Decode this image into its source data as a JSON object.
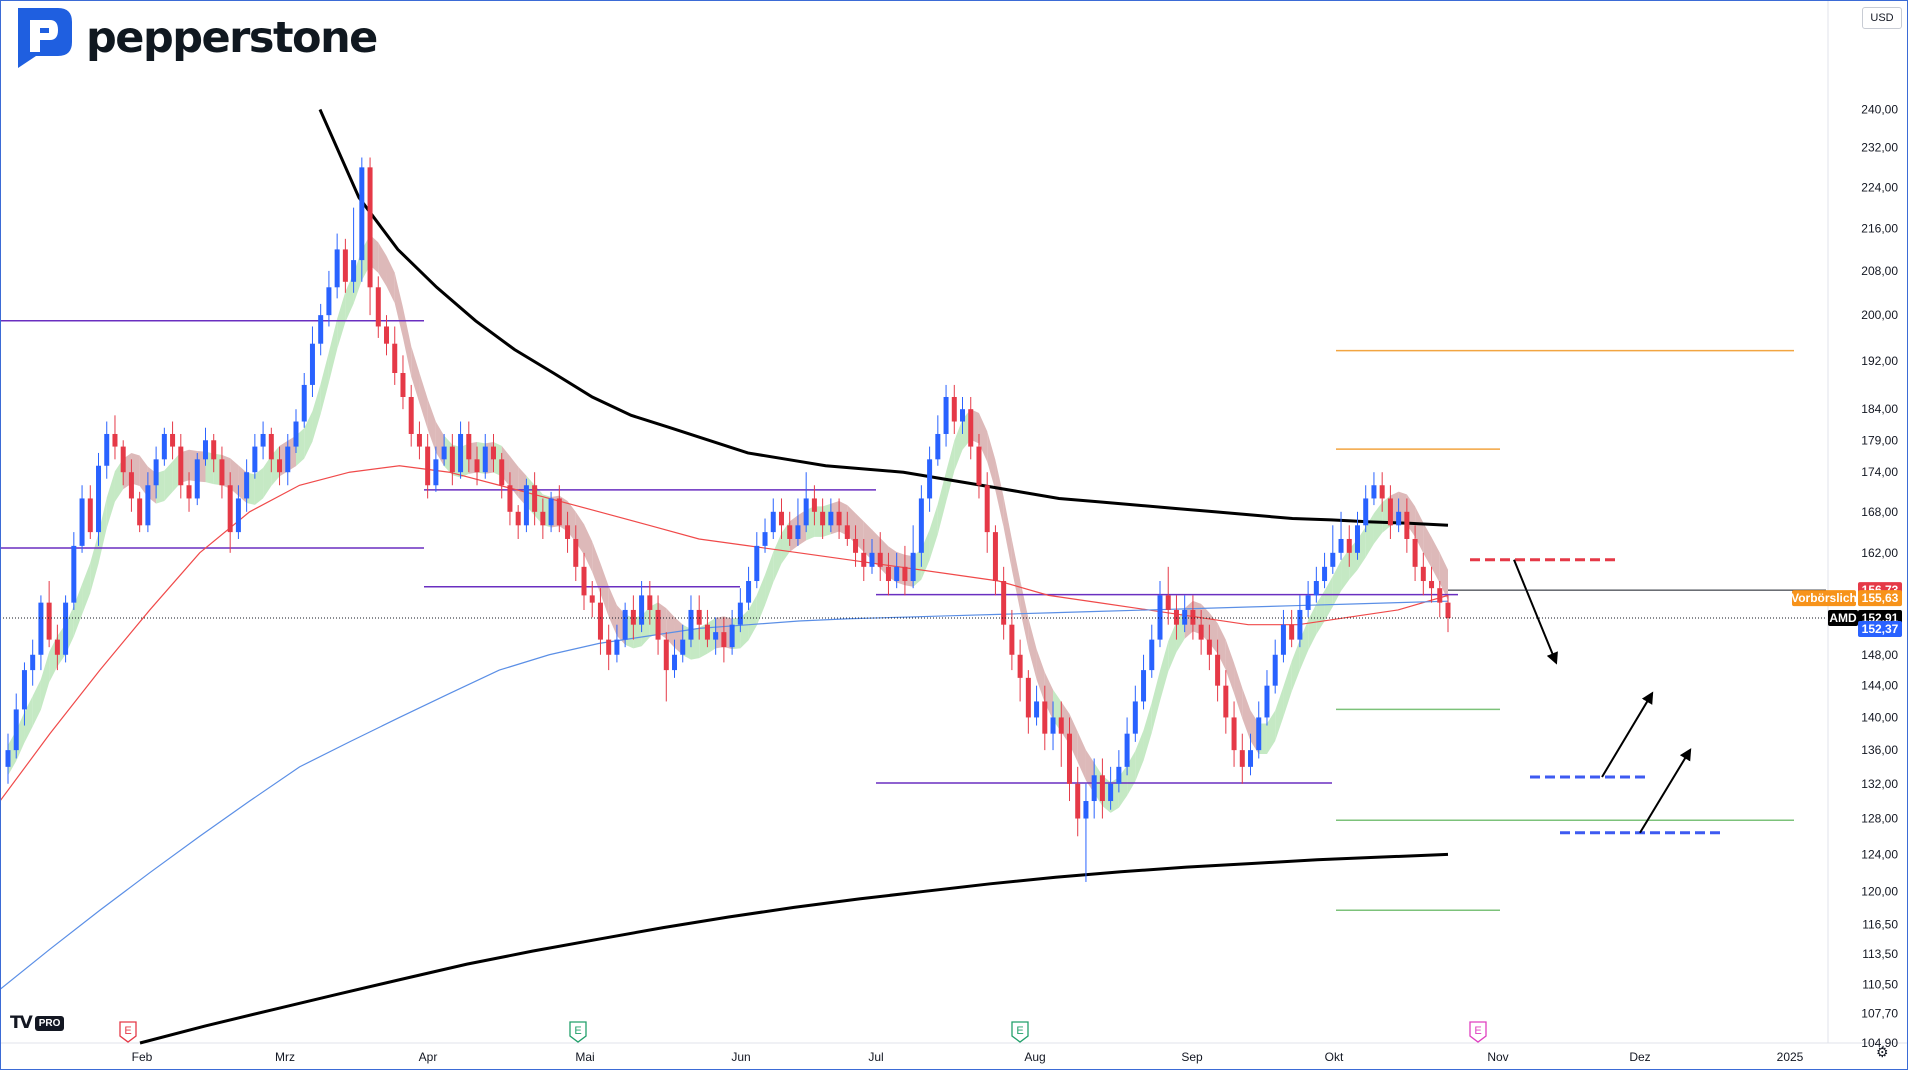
{
  "brand": {
    "name": "pepperstone"
  },
  "toolbar": {
    "currency": "USD",
    "platform_mark": "TV",
    "platform_tier": "PRO"
  },
  "colors": {
    "up": "#2962ff",
    "down": "#e53947",
    "ma_black": "#000000",
    "ma_red": "#f04a4a",
    "ma_blue": "#5b8fe6",
    "ma_gray": "#555555",
    "cloud_bull": "#b7e4b5",
    "cloud_bear": "#d4a8a8",
    "level_purple": "#6a2fc0",
    "fib_orange": "#f2a541",
    "fib_green": "#7cc27a",
    "plan_red": "#e53947",
    "plan_blue": "#3d5af1"
  },
  "chart_data": {
    "type": "candlestick",
    "symbol": "AMD",
    "currency": "USD",
    "y_axis_scale": "log",
    "ylim": [
      104.9,
      253
    ],
    "y_ticks": [
      "240,00",
      "232,00",
      "224,00",
      "216,00",
      "208,00",
      "200,00",
      "192,00",
      "184,00",
      "179,00",
      "174,00",
      "168,00",
      "162,00",
      "148,00",
      "144,00",
      "140,00",
      "136,00",
      "132,00",
      "128,00",
      "124,00",
      "120,00",
      "116,50",
      "113,50",
      "110,50",
      "107,70",
      "104,90"
    ],
    "x_ticks": [
      "Feb",
      "Mrz",
      "Apr",
      "Mai",
      "Jun",
      "Jul",
      "Aug",
      "Sep",
      "Okt",
      "Nov",
      "Dez",
      "2025"
    ],
    "earnings_markers": [
      {
        "label": "E",
        "month": "Feb",
        "tone": "negative"
      },
      {
        "label": "E",
        "month": "Mai",
        "tone": "positive"
      },
      {
        "label": "E",
        "month": "Aug",
        "tone": "positive"
      },
      {
        "label": "E",
        "month": "Okt",
        "tone": "upcoming"
      }
    ],
    "price_labels": [
      {
        "text": "156,73",
        "value": 156.73,
        "color": "#e53947"
      },
      {
        "text": "Vorbörslich",
        "value": 155.63,
        "color": "#f7931a"
      },
      {
        "text": "155,63",
        "value": 155.63,
        "color": "#f7931a"
      },
      {
        "text": "AMD",
        "value": 152.91,
        "color": "#000000"
      },
      {
        "text": "152,91",
        "value": 152.91,
        "color": "#000000"
      },
      {
        "text": "152,37",
        "value": 152.37,
        "color": "#2962ff"
      }
    ],
    "candles": [
      [
        134,
        136,
        138,
        132
      ],
      [
        136,
        141,
        143,
        135
      ],
      [
        141,
        146,
        147,
        139
      ],
      [
        146,
        148,
        150,
        144
      ],
      [
        148,
        155,
        156,
        146
      ],
      [
        155,
        150,
        158,
        149
      ],
      [
        150,
        148,
        152,
        146
      ],
      [
        148,
        155,
        156,
        147
      ],
      [
        155,
        163,
        165,
        154
      ],
      [
        163,
        170,
        172,
        162
      ],
      [
        170,
        165,
        172,
        164
      ],
      [
        165,
        175,
        177,
        163
      ],
      [
        175,
        180,
        182,
        173
      ],
      [
        180,
        178,
        183,
        176
      ],
      [
        178,
        174,
        179,
        172
      ],
      [
        174,
        170,
        176,
        168
      ],
      [
        170,
        166,
        171,
        165
      ],
      [
        166,
        172,
        174,
        165
      ],
      [
        172,
        176,
        178,
        170
      ],
      [
        176,
        180,
        181,
        175
      ],
      [
        180,
        178,
        182,
        176
      ],
      [
        178,
        172,
        180,
        170
      ],
      [
        172,
        170,
        174,
        168
      ],
      [
        170,
        176,
        177,
        169
      ],
      [
        176,
        179,
        181,
        175
      ],
      [
        179,
        176,
        180,
        174
      ],
      [
        176,
        172,
        178,
        170
      ],
      [
        172,
        165,
        174,
        162
      ],
      [
        165,
        170,
        172,
        164
      ],
      [
        170,
        174,
        176,
        168
      ],
      [
        174,
        178,
        180,
        173
      ],
      [
        178,
        180,
        182,
        176
      ],
      [
        180,
        176,
        181,
        174
      ],
      [
        176,
        174,
        178,
        172
      ],
      [
        174,
        178,
        180,
        172
      ],
      [
        178,
        182,
        184,
        177
      ],
      [
        182,
        188,
        190,
        181
      ],
      [
        188,
        195,
        198,
        186
      ],
      [
        195,
        200,
        202,
        193
      ],
      [
        200,
        205,
        208,
        198
      ],
      [
        205,
        212,
        215,
        203
      ],
      [
        212,
        206,
        214,
        204
      ],
      [
        206,
        210,
        220,
        204
      ],
      [
        210,
        228,
        230,
        206
      ],
      [
        228,
        205,
        230,
        200
      ],
      [
        205,
        198,
        207,
        196
      ],
      [
        198,
        195,
        200,
        193
      ],
      [
        195,
        190,
        198,
        188
      ],
      [
        190,
        186,
        193,
        184
      ],
      [
        186,
        180,
        188,
        178
      ],
      [
        180,
        178,
        182,
        176
      ],
      [
        178,
        172,
        180,
        170
      ],
      [
        172,
        176,
        178,
        171
      ],
      [
        176,
        178,
        180,
        175
      ],
      [
        178,
        174,
        180,
        172
      ],
      [
        174,
        180,
        182,
        173
      ],
      [
        180,
        176,
        182,
        174
      ],
      [
        176,
        174,
        178,
        172
      ],
      [
        174,
        178,
        180,
        173
      ],
      [
        178,
        176,
        180,
        174
      ],
      [
        176,
        172,
        177,
        170
      ],
      [
        172,
        168,
        174,
        166
      ],
      [
        168,
        166,
        169,
        164
      ],
      [
        166,
        172,
        173,
        165
      ],
      [
        172,
        168,
        174,
        166
      ],
      [
        168,
        166,
        170,
        164
      ],
      [
        166,
        170,
        171,
        165
      ],
      [
        170,
        166,
        172,
        165
      ],
      [
        166,
        164,
        168,
        162
      ],
      [
        164,
        160,
        166,
        158
      ],
      [
        160,
        156,
        162,
        154
      ],
      [
        156,
        155,
        158,
        153
      ],
      [
        155,
        150,
        157,
        148
      ],
      [
        150,
        148,
        152,
        146
      ],
      [
        148,
        150,
        152,
        147
      ],
      [
        150,
        154,
        155,
        149
      ],
      [
        154,
        152,
        156,
        150
      ],
      [
        152,
        156,
        158,
        151
      ],
      [
        156,
        154,
        158,
        152
      ],
      [
        154,
        150,
        156,
        148
      ],
      [
        150,
        146,
        151,
        142
      ],
      [
        146,
        148,
        150,
        145
      ],
      [
        148,
        150,
        152,
        147
      ],
      [
        150,
        154,
        156,
        149
      ],
      [
        154,
        152,
        156,
        150
      ],
      [
        152,
        150,
        154,
        149
      ],
      [
        150,
        151,
        153,
        148
      ],
      [
        151,
        149,
        153,
        147
      ],
      [
        149,
        152,
        154,
        148
      ],
      [
        152,
        155,
        157,
        151
      ],
      [
        155,
        158,
        160,
        154
      ],
      [
        158,
        163,
        165,
        157
      ],
      [
        163,
        165,
        167,
        162
      ],
      [
        165,
        168,
        170,
        164
      ],
      [
        168,
        166,
        170,
        164
      ],
      [
        166,
        164,
        168,
        163
      ],
      [
        164,
        166,
        170,
        163
      ],
      [
        166,
        170,
        174,
        165
      ],
      [
        170,
        168,
        172,
        166
      ],
      [
        168,
        166,
        170,
        164
      ],
      [
        166,
        168,
        170,
        165
      ],
      [
        168,
        166,
        170,
        164
      ],
      [
        166,
        164,
        168,
        163
      ],
      [
        164,
        162,
        166,
        160
      ],
      [
        162,
        160,
        164,
        158
      ],
      [
        160,
        162,
        164,
        159
      ],
      [
        162,
        160,
        165,
        158
      ],
      [
        160,
        158,
        162,
        156
      ],
      [
        158,
        160,
        162,
        157
      ],
      [
        160,
        158,
        163,
        156
      ],
      [
        158,
        162,
        166,
        157
      ],
      [
        162,
        170,
        172,
        160
      ],
      [
        170,
        176,
        178,
        168
      ],
      [
        176,
        180,
        183,
        175
      ],
      [
        180,
        186,
        188,
        178
      ],
      [
        186,
        182,
        188,
        180
      ],
      [
        182,
        184,
        186,
        180
      ],
      [
        184,
        178,
        186,
        176
      ],
      [
        178,
        172,
        180,
        170
      ],
      [
        172,
        165,
        174,
        162
      ],
      [
        165,
        158,
        166,
        156
      ],
      [
        158,
        152,
        160,
        150
      ],
      [
        152,
        148,
        154,
        146
      ],
      [
        148,
        145,
        150,
        142
      ],
      [
        145,
        140,
        146,
        138
      ],
      [
        140,
        142,
        144,
        139
      ],
      [
        142,
        138,
        144,
        136
      ],
      [
        138,
        140,
        142,
        136
      ],
      [
        140,
        138,
        142,
        134
      ],
      [
        138,
        132,
        140,
        130
      ],
      [
        132,
        128,
        134,
        126
      ],
      [
        128,
        130,
        132,
        121
      ],
      [
        130,
        133,
        135,
        128
      ],
      [
        133,
        130,
        135,
        128
      ],
      [
        130,
        132,
        134,
        129
      ],
      [
        132,
        134,
        136,
        131
      ],
      [
        134,
        138,
        140,
        133
      ],
      [
        138,
        142,
        144,
        137
      ],
      [
        142,
        146,
        148,
        141
      ],
      [
        146,
        150,
        152,
        145
      ],
      [
        150,
        156,
        158,
        149
      ],
      [
        156,
        154,
        160,
        152
      ],
      [
        154,
        152,
        156,
        150
      ],
      [
        152,
        154,
        156,
        151
      ],
      [
        154,
        152,
        156,
        150
      ],
      [
        152,
        150,
        154,
        148
      ],
      [
        150,
        148,
        152,
        146
      ],
      [
        148,
        144,
        150,
        142
      ],
      [
        144,
        140,
        146,
        138
      ],
      [
        140,
        136,
        142,
        134
      ],
      [
        136,
        134,
        138,
        132
      ],
      [
        134,
        136,
        138,
        133
      ],
      [
        136,
        140,
        142,
        135
      ],
      [
        140,
        144,
        146,
        139
      ],
      [
        144,
        148,
        150,
        143
      ],
      [
        148,
        152,
        154,
        147
      ],
      [
        152,
        150,
        154,
        149
      ],
      [
        150,
        154,
        156,
        149
      ],
      [
        154,
        156,
        158,
        153
      ],
      [
        156,
        158,
        160,
        155
      ],
      [
        158,
        160,
        162,
        157
      ],
      [
        160,
        162,
        166,
        159
      ],
      [
        162,
        164,
        168,
        161
      ],
      [
        164,
        162,
        166,
        160
      ],
      [
        162,
        166,
        168,
        161
      ],
      [
        166,
        170,
        172,
        165
      ],
      [
        170,
        172,
        174,
        169
      ],
      [
        172,
        170,
        174,
        168
      ],
      [
        170,
        166,
        172,
        164
      ],
      [
        166,
        168,
        170,
        165
      ],
      [
        168,
        164,
        170,
        162
      ],
      [
        164,
        160,
        166,
        158
      ],
      [
        160,
        158,
        162,
        156
      ],
      [
        158,
        157,
        160,
        155
      ],
      [
        157,
        155,
        158,
        153
      ],
      [
        155,
        152.9,
        156,
        151
      ]
    ],
    "moving_averages": [
      {
        "color": "#000000",
        "values": [
          240,
          222,
          212,
          205,
          199,
          194,
          190,
          186,
          183,
          181,
          179,
          177,
          176,
          175,
          174.5,
          174,
          173,
          172,
          171,
          170,
          169.5,
          169,
          168.5,
          168,
          167.5,
          167,
          166.8,
          166.5,
          166.3,
          166
        ]
      },
      {
        "color": "#000000",
        "values": [
          104.9,
          106.5,
          108,
          109.5,
          111,
          112.5,
          113.8,
          115,
          116.2,
          117.3,
          118.3,
          119.2,
          120,
          120.8,
          121.5,
          122.1,
          122.6,
          123,
          123.4,
          123.7,
          124
        ]
      },
      {
        "color": "#f04a4a",
        "values": [
          130,
          138,
          146,
          154,
          162,
          168,
          172,
          174,
          175,
          174,
          172,
          170,
          168,
          166,
          164,
          163,
          162,
          161,
          160,
          159,
          158,
          156,
          155,
          154,
          153,
          152,
          152,
          153,
          154,
          156
        ]
      },
      {
        "color": "#5b8fe6",
        "values": [
          110,
          114,
          118,
          122,
          126,
          130,
          134,
          137,
          140,
          143,
          146,
          148,
          149.5,
          150.5,
          151.5,
          152,
          152.5,
          152.8,
          153,
          153.2,
          153.4,
          153.6,
          153.8,
          154,
          154.2,
          154.4,
          154.6,
          154.8,
          155,
          155.2
        ]
      }
    ],
    "horizontal_levels": [
      {
        "value": 199,
        "color": "#6a2fc0",
        "style": "solid"
      },
      {
        "value": 162.7,
        "color": "#6a2fc0",
        "style": "solid"
      },
      {
        "value": 171.3,
        "color": "#6a2fc0",
        "style": "solid"
      },
      {
        "value": 157.2,
        "color": "#6a2fc0",
        "style": "solid"
      },
      {
        "value": 156.1,
        "color": "#6a2fc0",
        "style": "solid"
      },
      {
        "value": 132.1,
        "color": "#6a2fc0",
        "style": "solid"
      },
      {
        "value": 193.8,
        "color": "#f2a541",
        "style": "solid"
      },
      {
        "value": 177.6,
        "color": "#f2a541",
        "style": "solid"
      },
      {
        "value": 141,
        "color": "#7cc27a",
        "style": "solid"
      },
      {
        "value": 127.8,
        "color": "#7cc27a",
        "style": "solid"
      },
      {
        "value": 118,
        "color": "#7cc27a",
        "style": "solid"
      }
    ],
    "trade_plan": {
      "resistance_zone": 161,
      "support_zones": [
        132.8,
        126.4
      ]
    }
  }
}
